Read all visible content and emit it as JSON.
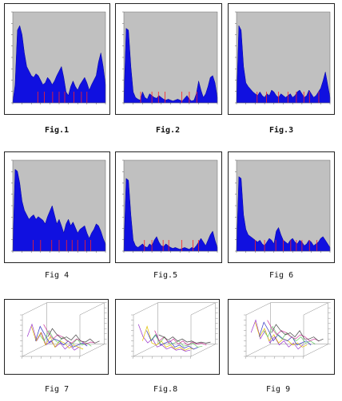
{
  "colors": {
    "plot_bg": "#c0c0c0",
    "fill": "#1010e0",
    "marker": "#ff2020",
    "series_3d": [
      "#9933cc",
      "#e0c000",
      "#3030c0",
      "#66cc66",
      "#cc3399",
      "#444444"
    ]
  },
  "figures": [
    {
      "caption": "Fig.1",
      "bold": true
    },
    {
      "caption": "Fig.2",
      "bold": true
    },
    {
      "caption": "Fig.3",
      "bold": true
    },
    {
      "caption": "Fig 4",
      "bold": false
    },
    {
      "caption": "Fig.5",
      "bold": false
    },
    {
      "caption": "Fig 6",
      "bold": false
    },
    {
      "caption": "Fig 7",
      "bold": false
    },
    {
      "caption": "Fig.8",
      "bold": false
    },
    {
      "caption": "Fig 9",
      "bold": false
    }
  ],
  "chart_data": [
    {
      "type": "area",
      "ylim": [
        0,
        100
      ],
      "markers": [
        0.27,
        0.34,
        0.43,
        0.5,
        0.56,
        0.66,
        0.74,
        0.8
      ],
      "values": [
        1,
        20,
        80,
        85,
        75,
        55,
        40,
        35,
        30,
        28,
        32,
        30,
        25,
        20,
        22,
        28,
        25,
        20,
        24,
        30,
        35,
        40,
        28,
        12,
        8,
        18,
        24,
        18,
        14,
        20,
        24,
        28,
        22,
        14,
        20,
        25,
        30,
        45,
        55,
        40,
        20
      ]
    },
    {
      "type": "area",
      "ylim": [
        0,
        100
      ],
      "markers": [
        0.18,
        0.3,
        0.37,
        0.44,
        0.62,
        0.7,
        0.78
      ],
      "values": [
        1,
        82,
        80,
        40,
        12,
        6,
        4,
        3,
        12,
        6,
        4,
        10,
        8,
        6,
        5,
        8,
        6,
        4,
        3,
        4,
        3,
        2,
        3,
        4,
        3,
        2,
        5,
        8,
        4,
        2,
        3,
        10,
        24,
        14,
        6,
        10,
        18,
        28,
        30,
        22,
        6
      ]
    },
    {
      "type": "area",
      "ylim": [
        0,
        100
      ],
      "markers": [
        0.22,
        0.32,
        0.45,
        0.55,
        0.64,
        0.72,
        0.78,
        0.88
      ],
      "values": [
        1,
        85,
        80,
        40,
        22,
        18,
        15,
        12,
        10,
        8,
        12,
        8,
        6,
        10,
        8,
        14,
        12,
        8,
        6,
        10,
        8,
        6,
        8,
        10,
        6,
        8,
        12,
        14,
        10,
        6,
        8,
        14,
        10,
        6,
        8,
        12,
        16,
        24,
        34,
        20,
        6
      ]
    },
    {
      "type": "area",
      "ylim": [
        0,
        100
      ],
      "markers": [
        0.22,
        0.3,
        0.42,
        0.5,
        0.58,
        0.64,
        0.7,
        0.78,
        0.84
      ],
      "values": [
        1,
        90,
        88,
        75,
        55,
        45,
        40,
        35,
        38,
        40,
        35,
        38,
        36,
        34,
        30,
        38,
        44,
        50,
        40,
        30,
        35,
        28,
        20,
        30,
        35,
        28,
        32,
        26,
        20,
        24,
        26,
        28,
        20,
        14,
        20,
        24,
        30,
        28,
        22,
        14,
        8
      ]
    },
    {
      "type": "area",
      "ylim": [
        0,
        100
      ],
      "markers": [
        0.22,
        0.3,
        0.42,
        0.48,
        0.62,
        0.74,
        0.8
      ],
      "values": [
        1,
        80,
        78,
        40,
        12,
        6,
        4,
        6,
        8,
        5,
        4,
        8,
        6,
        12,
        16,
        10,
        6,
        5,
        8,
        6,
        4,
        3,
        4,
        3,
        2,
        3,
        4,
        3,
        2,
        4,
        3,
        6,
        10,
        14,
        10,
        6,
        12,
        18,
        22,
        12,
        4
      ]
    },
    {
      "type": "area",
      "ylim": [
        0,
        100
      ],
      "markers": [
        0.2,
        0.3,
        0.42,
        0.5,
        0.58,
        0.64,
        0.7,
        0.78,
        0.86
      ],
      "values": [
        1,
        82,
        80,
        40,
        24,
        18,
        16,
        14,
        12,
        10,
        12,
        8,
        6,
        10,
        14,
        12,
        8,
        22,
        26,
        18,
        12,
        10,
        8,
        12,
        14,
        10,
        8,
        12,
        10,
        6,
        8,
        12,
        10,
        6,
        8,
        10,
        14,
        16,
        12,
        8,
        4
      ]
    },
    {
      "type": "line",
      "view": "3d",
      "series_count": 6,
      "values": [
        [
          18,
          30,
          14,
          22,
          10,
          14,
          8,
          12,
          6,
          10,
          5,
          8
        ],
        [
          26,
          12,
          20,
          8,
          16,
          6,
          12,
          10,
          5,
          8,
          6,
          4
        ],
        [
          10,
          24,
          16,
          8,
          12,
          10,
          6,
          10,
          4,
          6,
          8,
          5
        ],
        [
          14,
          8,
          18,
          10,
          6,
          12,
          8,
          5,
          10,
          4,
          6,
          3
        ],
        [
          22,
          14,
          8,
          12,
          10,
          6,
          4,
          8,
          6,
          3,
          5,
          4
        ],
        [
          8,
          16,
          10,
          6,
          8,
          5,
          10,
          4,
          3,
          6,
          2,
          4
        ]
      ]
    },
    {
      "type": "line",
      "view": "3d",
      "series_count": 6,
      "values": [
        [
          30,
          18,
          12,
          16,
          8,
          10,
          6,
          8,
          5,
          6,
          4,
          5
        ],
        [
          12,
          26,
          10,
          8,
          12,
          6,
          8,
          4,
          6,
          3,
          5,
          4
        ],
        [
          20,
          10,
          16,
          6,
          8,
          10,
          4,
          6,
          3,
          5,
          2,
          4
        ],
        [
          8,
          14,
          6,
          12,
          5,
          6,
          8,
          3,
          4,
          6,
          2,
          3
        ],
        [
          16,
          6,
          10,
          4,
          8,
          3,
          6,
          2,
          5,
          3,
          4,
          2
        ],
        [
          10,
          8,
          5,
          8,
          4,
          6,
          3,
          4,
          2,
          3,
          2,
          3
        ]
      ]
    },
    {
      "type": "line",
      "view": "3d",
      "series_count": 6,
      "values": [
        [
          22,
          34,
          16,
          24,
          12,
          18,
          10,
          14,
          8,
          12,
          6,
          10
        ],
        [
          30,
          16,
          24,
          12,
          18,
          10,
          14,
          12,
          8,
          10,
          6,
          8
        ],
        [
          14,
          28,
          20,
          10,
          16,
          12,
          10,
          14,
          6,
          8,
          10,
          6
        ],
        [
          18,
          12,
          22,
          14,
          10,
          16,
          12,
          8,
          12,
          6,
          8,
          5
        ],
        [
          26,
          18,
          12,
          16,
          14,
          10,
          8,
          12,
          10,
          6,
          8,
          6
        ],
        [
          12,
          20,
          14,
          10,
          12,
          8,
          14,
          6,
          6,
          8,
          4,
          6
        ]
      ]
    }
  ]
}
